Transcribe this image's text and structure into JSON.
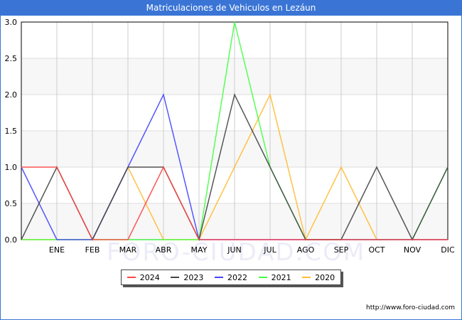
{
  "chart_data": {
    "type": "line",
    "title": "Matriculaciones de Vehiculos en Lezáun",
    "categories": [
      "",
      "ENE",
      "FEB",
      "MAR",
      "ABR",
      "MAY",
      "JUN",
      "JUL",
      "AGO",
      "SEP",
      "OCT",
      "NOV",
      "DIC"
    ],
    "ylim": [
      0,
      3
    ],
    "yticks": [
      "0.0",
      "0.5",
      "1.0",
      "1.5",
      "2.0",
      "2.5",
      "3.0"
    ],
    "grid": true,
    "legend_position": "bottom",
    "series": [
      {
        "name": "2024",
        "color": "#ff4444",
        "values": [
          1,
          1,
          0,
          0,
          1,
          0,
          0,
          0,
          0,
          0,
          0,
          0,
          0
        ]
      },
      {
        "name": "2023",
        "color": "#444444",
        "values": [
          0,
          1,
          0,
          1,
          1,
          0,
          2,
          1,
          0,
          0,
          1,
          0,
          1
        ]
      },
      {
        "name": "2022",
        "color": "#4444ff",
        "values": [
          1,
          0,
          0,
          1,
          2,
          0,
          0,
          0,
          0,
          0,
          0,
          0,
          0
        ]
      },
      {
        "name": "2021",
        "color": "#44ff44",
        "values": [
          0,
          0,
          0,
          0,
          0,
          0,
          3,
          1,
          0,
          0,
          0,
          0,
          1
        ]
      },
      {
        "name": "2020",
        "color": "#ffbb33",
        "values": [
          0,
          0,
          0,
          1,
          0,
          0,
          1,
          2,
          0,
          1,
          0,
          0,
          0
        ]
      }
    ]
  },
  "watermark": "FORO-CIUDAD.COM",
  "url": "http://www.foro-ciudad.com"
}
